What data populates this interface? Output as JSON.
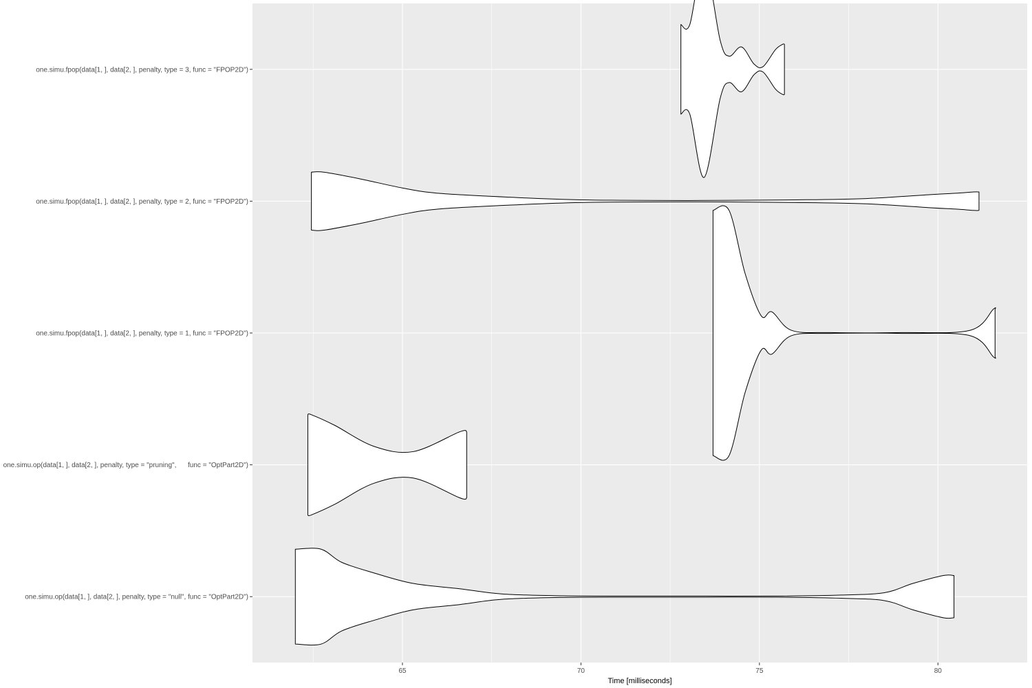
{
  "chart_data": {
    "type": "violin",
    "orientation": "horizontal",
    "title": "",
    "xlabel": "Time [milliseconds]",
    "ylabel": "",
    "xlim": [
      60.8,
      82.5
    ],
    "xticks": [
      65,
      70,
      75,
      80
    ],
    "xtick_labels": [
      "65",
      "70",
      "75",
      "80"
    ],
    "grid": true,
    "legend": "none",
    "panel_color": "#ebebeb",
    "grid_color": "#ffffff",
    "violin_fill": "#ffffff",
    "violin_stroke": "#000000",
    "categories": [
      "one.simu.op(data[1, ], data[2, ], penalty, type = \"null\", func = \"OptPart2D\")",
      "one.simu.op(data[1, ], data[2, ], penalty, type = \"pruning\",      func = \"OptPart2D\")",
      "one.simu.fpop(data[1, ], data[2, ], penalty, type = 1, func = \"FPOP2D\")",
      "one.simu.fpop(data[1, ], data[2, ], penalty, type = 2, func = \"FPOP2D\")",
      "one.simu.fpop(data[1, ], data[2, ], penalty, type = 3, func = \"FPOP2D\")"
    ],
    "series": [
      {
        "x": [
          62.72,
          63.3,
          64.2,
          65.3,
          66.6,
          67.8,
          69.5,
          71.5,
          73.5,
          75.5,
          77.3,
          78.5,
          79.3,
          80.15
        ],
        "halfwidth": [
          0.36,
          0.26,
          0.18,
          0.1,
          0.06,
          0.02,
          0.006,
          0.004,
          0.004,
          0.004,
          0.012,
          0.03,
          0.1,
          0.16
        ],
        "min": 62.0,
        "max": 80.45
      },
      {
        "x": [
          62.45,
          63.1,
          64.2,
          65.3,
          66.6
        ],
        "halfwidth": [
          0.38,
          0.3,
          0.14,
          0.1,
          0.25
        ],
        "min": 62.35,
        "max": 66.8
      },
      {
        "x": [
          74.15,
          74.6,
          75.05,
          75.35,
          75.9,
          77.0,
          79.0,
          80.9,
          81.55
        ],
        "halfwidth": [
          0.93,
          0.45,
          0.13,
          0.16,
          0.02,
          0.003,
          0.003,
          0.02,
          0.18
        ],
        "min": 73.7,
        "max": 81.6
      },
      {
        "x": [
          62.8,
          63.8,
          65.0,
          66.0,
          68.0,
          70.0,
          73.0,
          76.0,
          78.0,
          79.8,
          80.5,
          81.0
        ],
        "halfwidth": [
          0.22,
          0.17,
          0.1,
          0.06,
          0.03,
          0.01,
          0.005,
          0.01,
          0.02,
          0.05,
          0.06,
          0.07
        ],
        "min": 62.45,
        "max": 81.15
      },
      {
        "x": [
          73.05,
          73.45,
          73.9,
          74.15,
          74.5,
          74.85,
          75.1,
          75.45,
          75.65
        ],
        "halfwidth": [
          0.34,
          0.82,
          0.22,
          0.1,
          0.17,
          0.04,
          0.02,
          0.15,
          0.19
        ],
        "min": 72.8,
        "max": 75.7
      }
    ]
  }
}
